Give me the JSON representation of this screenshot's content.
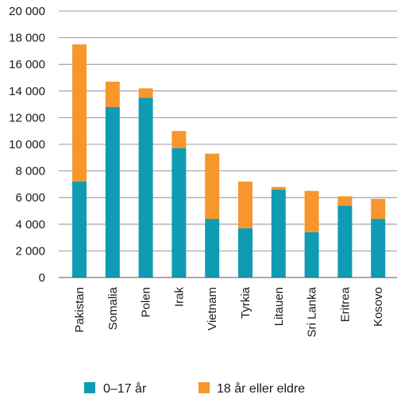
{
  "chart_data": {
    "type": "bar",
    "stacked": true,
    "categories": [
      "Pakistan",
      "Somalia",
      "Polen",
      "Irak",
      "Vietnam",
      "Tyrkia",
      "Litauen",
      "Sri Lanka",
      "Eritrea",
      "Kosovo"
    ],
    "series": [
      {
        "name": "0–17 år",
        "color": "#0f9bb4",
        "values": [
          7200,
          12800,
          13500,
          9700,
          4400,
          3700,
          6600,
          3400,
          5400,
          4400
        ]
      },
      {
        "name": "18 år eller eldre",
        "color": "#f7962d",
        "values": [
          10300,
          1900,
          700,
          1300,
          4900,
          3500,
          200,
          3100,
          700,
          1500
        ]
      }
    ],
    "ylim": [
      0,
      20000
    ],
    "yticks": [
      0,
      2000,
      4000,
      6000,
      8000,
      10000,
      12000,
      14000,
      16000,
      18000,
      20000
    ],
    "ytick_labels": [
      "0",
      "2 000",
      "4 000",
      "6 000",
      "8 000",
      "10 000",
      "12 000",
      "14 000",
      "16 000",
      "18 000",
      "20 000"
    ],
    "grid": true,
    "legend": "bottom",
    "title": "",
    "xlabel": "",
    "ylabel": ""
  }
}
